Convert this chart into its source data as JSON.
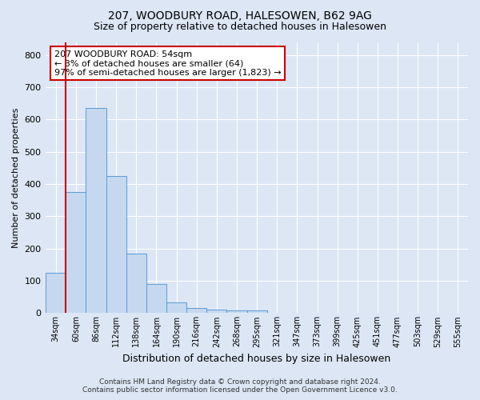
{
  "title1": "207, WOODBURY ROAD, HALESOWEN, B62 9AG",
  "title2": "Size of property relative to detached houses in Halesowen",
  "xlabel": "Distribution of detached houses by size in Halesowen",
  "ylabel": "Number of detached properties",
  "footer1": "Contains HM Land Registry data © Crown copyright and database right 2024.",
  "footer2": "Contains public sector information licensed under the Open Government Licence v3.0.",
  "annotation_line1": "207 WOODBURY ROAD: 54sqm",
  "annotation_line2": "← 3% of detached houses are smaller (64)",
  "annotation_line3": "97% of semi-detached houses are larger (1,823) →",
  "bar_labels": [
    "34sqm",
    "60sqm",
    "86sqm",
    "112sqm",
    "138sqm",
    "164sqm",
    "190sqm",
    "216sqm",
    "242sqm",
    "268sqm",
    "295sqm",
    "321sqm",
    "347sqm",
    "373sqm",
    "399sqm",
    "425sqm",
    "451sqm",
    "477sqm",
    "503sqm",
    "529sqm",
    "555sqm"
  ],
  "bar_values": [
    125,
    375,
    635,
    425,
    185,
    90,
    32,
    17,
    10,
    8,
    8,
    0,
    0,
    0,
    0,
    0,
    0,
    0,
    0,
    0,
    0
  ],
  "bar_color": "#c5d8ef",
  "bar_edge_color": "#5b9bd5",
  "highlight_color": "#cc0000",
  "annotation_box_color": "#ffffff",
  "annotation_box_edge": "#cc0000",
  "ylim": [
    0,
    840
  ],
  "yticks": [
    0,
    100,
    200,
    300,
    400,
    500,
    600,
    700,
    800
  ],
  "bg_color": "#dce6f5",
  "plot_bg_color": "#dce6f5",
  "grid_color": "#ffffff",
  "title1_fontsize": 10,
  "title2_fontsize": 9
}
